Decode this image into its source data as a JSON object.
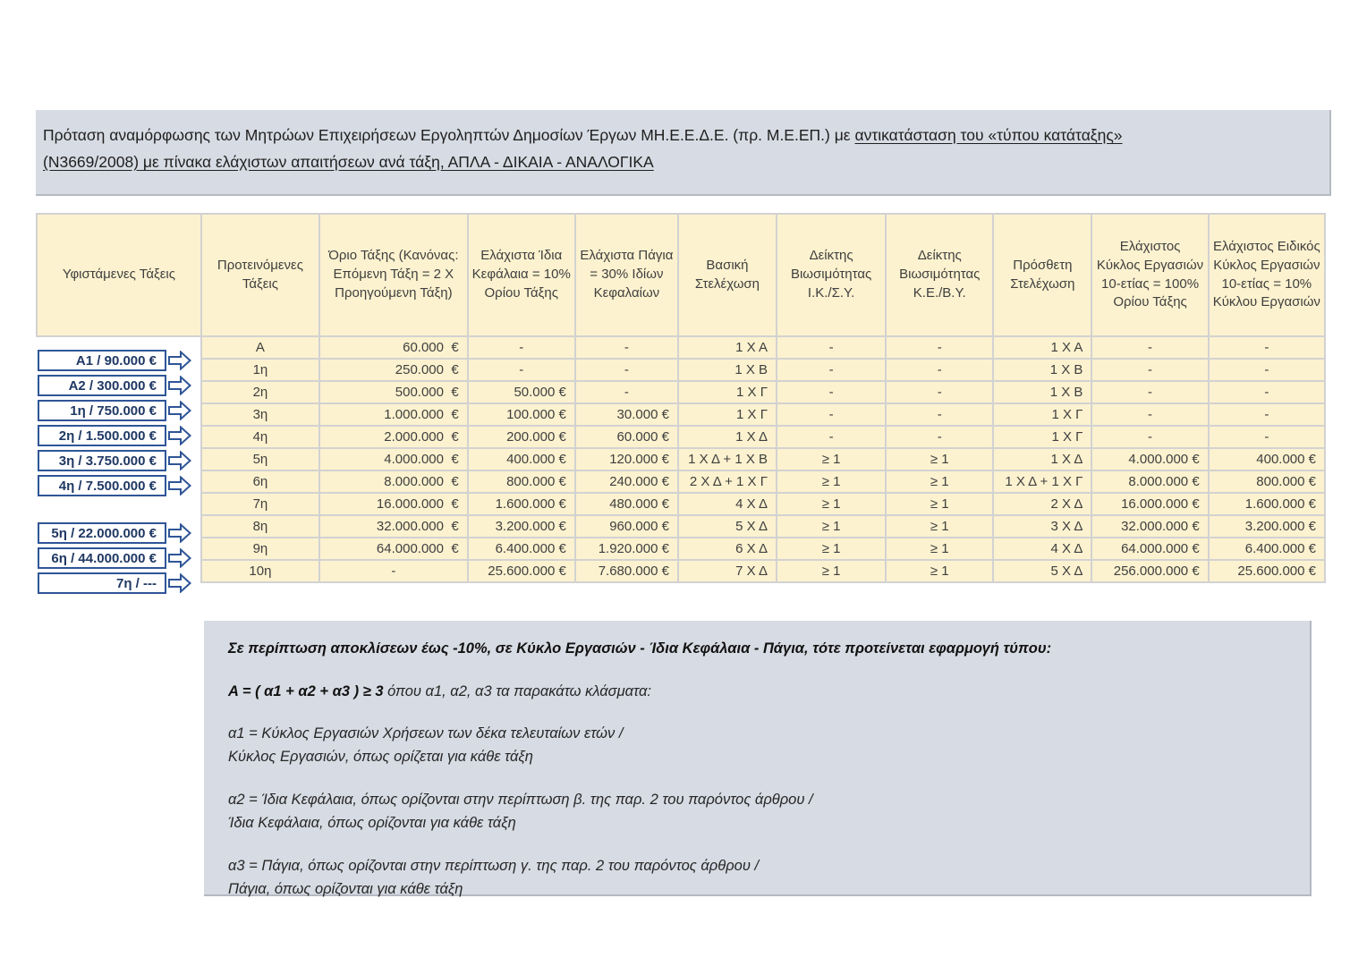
{
  "title_block": {
    "pre": "Πρόταση αναμόρφωσης των Μητρώων Επιχειρήσεων Εργοληπτών Δημοσίων Έργων ΜΗ.Ε.Ε.Δ.Ε. (πρ. Μ.Ε.ΕΠ.) με ",
    "underlined_line1": "αντικατάσταση του «τύπου κατάταξης»",
    "underlined_line2": "(Ν3669/2008) με πίνακα ελάχιστων απαιτήσεων ανά τάξη, ΑΠΛΑ - ΔΙΚΑΙΑ - ΑΝΑΛΟΓΙΚΑ"
  },
  "table": {
    "headers": [
      "Υφιστάμενες Τάξεις",
      "Προτεινόμενες Τάξεις",
      "Όριο Τάξης (Κανόνας: Επόμενη Τάξη = 2 Χ Προηγούμενη Τάξη)",
      "Ελάχιστα Ίδια Κεφάλαια = 10% Ορίου Τάξης",
      "Ελάχιστα Πάγια = 30% Ιδίων Κεφαλαίων",
      "Βασική Στελέχωση",
      "Δείκτης Βιωσιμότητας Ι.Κ./Σ.Υ.",
      "Δείκτης Βιωσιμότητας Κ.Ε./Β.Υ.",
      "Πρόσθετη Στελέχωση",
      "Ελάχιστος Κύκλος Εργασιών 10-ετίας = 100% Ορίου Τάξης",
      "Ελάχιστος Ειδικός Κύκλος Εργασιών 10-ετίας = 10% Κύκλου Εργασιών"
    ],
    "rows": [
      [
        "Α",
        "60.000  €",
        "-",
        "-",
        "1 Χ Α",
        "-",
        "-",
        "1 Χ Α",
        "-",
        "-"
      ],
      [
        "1η",
        "250.000  €",
        "-",
        "-",
        "1 Χ Β",
        "-",
        "-",
        "1 Χ Β",
        "-",
        "-"
      ],
      [
        "2η",
        "500.000  €",
        "50.000 €",
        "-",
        "1 Χ Γ",
        "-",
        "-",
        "1 Χ Β",
        "-",
        "-"
      ],
      [
        "3η",
        "1.000.000  €",
        "100.000 €",
        "30.000 €",
        "1 Χ Γ",
        "-",
        "-",
        "1 Χ Γ",
        "-",
        "-"
      ],
      [
        "4η",
        "2.000.000  €",
        "200.000 €",
        "60.000 €",
        "1 Χ Δ",
        "-",
        "-",
        "1 Χ Γ",
        "-",
        "-"
      ],
      [
        "5η",
        "4.000.000  €",
        "400.000 €",
        "120.000 €",
        "1 Χ Δ + 1 Χ Β",
        "≥ 1",
        "≥ 1",
        "1 Χ Δ",
        "4.000.000 €",
        "400.000 €"
      ],
      [
        "6η",
        "8.000.000  €",
        "800.000 €",
        "240.000 €",
        "2 Χ Δ + 1 Χ Γ",
        "≥ 1",
        "≥ 1",
        "1 Χ Δ + 1 Χ Γ",
        "8.000.000 €",
        "800.000 €"
      ],
      [
        "7η",
        "16.000.000  €",
        "1.600.000 €",
        "480.000 €",
        "4 Χ Δ",
        "≥ 1",
        "≥ 1",
        "2 Χ Δ",
        "16.000.000 €",
        "1.600.000 €"
      ],
      [
        "8η",
        "32.000.000  €",
        "3.200.000 €",
        "960.000 €",
        "5 Χ Δ",
        "≥ 1",
        "≥ 1",
        "3 Χ Δ",
        "32.000.000 €",
        "3.200.000 €"
      ],
      [
        "9η",
        "64.000.000  €",
        "6.400.000 €",
        "1.920.000 €",
        "6 Χ Δ",
        "≥ 1",
        "≥ 1",
        "4 Χ Δ",
        "64.000.000 €",
        "6.400.000 €"
      ],
      [
        "10η",
        "-",
        "25.600.000 €",
        "7.680.000 €",
        "7 Χ Δ",
        "≥ 1",
        "≥ 1",
        "5 Χ Δ",
        "256.000.000 €",
        "25.600.000 €"
      ]
    ]
  },
  "legacy_classes": {
    "group1": [
      "Α1 / 90.000 €",
      "Α2 / 300.000 €",
      "1η / 750.000 €",
      "2η / 1.500.000 €",
      "3η / 3.750.000 €",
      "4η / 7.500.000 €"
    ],
    "group2": [
      "5η / 22.000.000 €",
      "6η / 44.000.000 €",
      "7η / ---"
    ]
  },
  "notes_block": {
    "intro": "Σε περίπτωση αποκλίσεων έως -10%, σε Κύκλο Εργασιών - Ίδια Κεφάλαια - Πάγια, τότε προτείνεται εφαρμογή τύπου:",
    "formula_bold": "Α = ( α1 + α2 + α3 ) ≥ 3",
    "formula_rest": " όπου α1, α2, α3 τα παρακάτω κλάσματα:",
    "fractions": [
      {
        "line1": "α1 = Κύκλος Εργασιών Χρήσεων των δέκα τελευταίων ετών /",
        "line2": "Κύκλος Εργασιών, όπως ορίζεται για κάθε τάξη"
      },
      {
        "line1": "α2 = Ίδια Κεφάλαια, όπως ορίζονται στην περίπτωση β. της παρ. 2 του παρόντος άρθρου /",
        "line2": "Ίδια Κεφάλαια, όπως ορίζονται για κάθε τάξη"
      },
      {
        "line1": "α3 = Πάγια, όπως ορίζονται στην περίπτωση γ. της παρ. 2 του παρόντος άρθρου /",
        "line2": "Πάγια, όπως ορίζονται για κάθε τάξη"
      }
    ]
  },
  "colors": {
    "block_background": "#d7dbe3",
    "cell_background": "#fcf2cf",
    "grid_border": "#d2d2d2",
    "box_border_blue": "#2f5597",
    "box_text_navy": "#1f3864",
    "text_dark": "#3f3f3f"
  }
}
